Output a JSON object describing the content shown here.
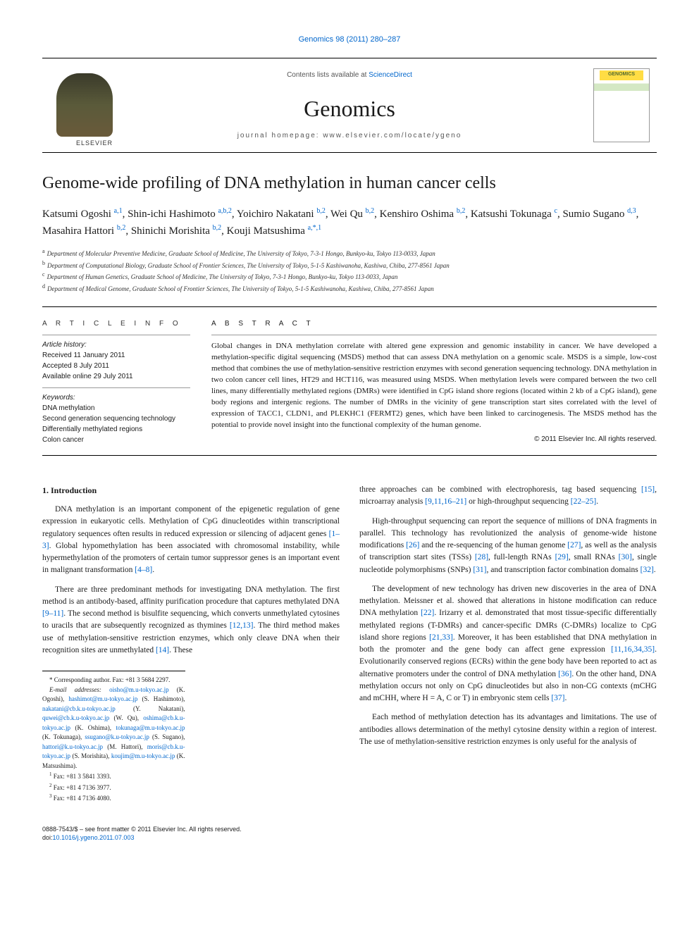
{
  "running_head": "Genomics 98 (2011) 280–287",
  "masthead": {
    "contents_prefix": "Contents lists available at ",
    "contents_link": "ScienceDirect",
    "journal": "Genomics",
    "homepage_prefix": "journal homepage: ",
    "homepage": "www.elsevier.com/locate/ygeno",
    "publisher": "ELSEVIER"
  },
  "title": "Genome-wide profiling of DNA methylation in human cancer cells",
  "authors_html": "Katsumi Ogoshi <sup>a,1</sup>, Shin-ichi Hashimoto <sup>a,b,2</sup>, Yoichiro Nakatani <sup>b,2</sup>, Wei Qu <sup>b,2</sup>, Kenshiro Oshima <sup>b,2</sup>, Katsushi Tokunaga <sup>c</sup>, Sumio Sugano <sup>d,3</sup>, Masahira Hattori <sup>b,2</sup>, Shinichi Morishita <sup>b,2</sup>, Kouji Matsushima <sup>a,<span class=\"star\">*</span>,1</sup>",
  "affiliations": [
    {
      "key": "a",
      "text": "Department of Molecular Preventive Medicine, Graduate School of Medicine, The University of Tokyo, 7-3-1 Hongo, Bunkyo-ku, Tokyo 113-0033, Japan"
    },
    {
      "key": "b",
      "text": "Department of Computational Biology, Graduate School of Frontier Sciences, The University of Tokyo, 5-1-5 Kashiwanoha, Kashiwa, Chiba, 277-8561 Japan"
    },
    {
      "key": "c",
      "text": "Department of Human Genetics, Graduate School of Medicine, The University of Tokyo, 7-3-1 Hongo, Bunkyo-ku, Tokyo 113-0033, Japan"
    },
    {
      "key": "d",
      "text": "Department of Medical Genome, Graduate School of Frontier Sciences, The University of Tokyo, 5-1-5 Kashiwanoha, Kashiwa, Chiba, 277-8561 Japan"
    }
  ],
  "article_info": {
    "heading": "A R T I C L E   I N F O",
    "history_label": "Article history:",
    "history": [
      "Received 11 January 2011",
      "Accepted 8 July 2011",
      "Available online 29 July 2011"
    ],
    "keywords_label": "Keywords:",
    "keywords": [
      "DNA methylation",
      "Second generation sequencing technology",
      "Differentially methylated regions",
      "Colon cancer"
    ]
  },
  "abstract": {
    "heading": "A B S T R A C T",
    "text": "Global changes in DNA methylation correlate with altered gene expression and genomic instability in cancer. We have developed a methylation-specific digital sequencing (MSDS) method that can assess DNA methylation on a genomic scale. MSDS is a simple, low-cost method that combines the use of methylation-sensitive restriction enzymes with second generation sequencing technology. DNA methylation in two colon cancer cell lines, HT29 and HCT116, was measured using MSDS. When methylation levels were compared between the two cell lines, many differentially methylated regions (DMRs) were identified in CpG island shore regions (located within 2 kb of a CpG island), gene body regions and intergenic regions. The number of DMRs in the vicinity of gene transcription start sites correlated with the level of expression of TACC1, CLDN1, and PLEKHC1 (FERMT2) genes, which have been linked to carcinogenesis. The MSDS method has the potential to provide novel insight into the functional complexity of the human genome.",
    "copyright": "© 2011 Elsevier Inc. All rights reserved."
  },
  "body": {
    "section1_heading": "1. Introduction",
    "p1": "DNA methylation is an important component of the epigenetic regulation of gene expression in eukaryotic cells. Methylation of CpG dinucleotides within transcriptional regulatory sequences often results in reduced expression or silencing of adjacent genes [1–3]. Global hypomethylation has been associated with chromosomal instability, while hypermethylation of the promoters of certain tumor suppressor genes is an important event in malignant transformation [4–8].",
    "p2": "There are three predominant methods for investigating DNA methylation. The first method is an antibody-based, affinity purification procedure that captures methylated DNA [9–11]. The second method is bisulfite sequencing, which converts unmethylated cytosines to uracils that are subsequently recognized as thymines [12,13]. The third method makes use of methylation-sensitive restriction enzymes, which only cleave DNA when their recognition sites are unmethylated [14]. These",
    "p3": "three approaches can be combined with electrophoresis, tag based sequencing [15], microarray analysis [9,11,16–21] or high-throughput sequencing [22–25].",
    "p4": "High-throughput sequencing can report the sequence of millions of DNA fragments in parallel. This technology has revolutionized the analysis of genome-wide histone modifications [26] and the re-sequencing of the human genome [27], as well as the analysis of transcription start sites (TSSs) [28], full-length RNAs [29], small RNAs [30], single nucleotide polymorphisms (SNPs) [31], and transcription factor combination domains [32].",
    "p5": "The development of new technology has driven new discoveries in the area of DNA methylation. Meissner et al. showed that alterations in histone modification can reduce DNA methylation [22]. Irizarry et al. demonstrated that most tissue-specific differentially methylated regions (T-DMRs) and cancer-specific DMRs (C-DMRs) localize to CpG island shore regions [21,33]. Moreover, it has been established that DNA methylation in both the promoter and the gene body can affect gene expression [11,16,34,35]. Evolutionarily conserved regions (ECRs) within the gene body have been reported to act as alternative promoters under the control of DNA methylation [36]. On the other hand, DNA methylation occurs not only on CpG dinucleotides but also in non-CG contexts (mCHG and mCHH, where H = A, C or T) in embryonic stem cells [37].",
    "p6": "Each method of methylation detection has its advantages and limitations. The use of antibodies allows determination of the methyl cytosine density within a region of interest. The use of methylation-sensitive restriction enzymes is only useful for the analysis of"
  },
  "footnotes": {
    "corr": "* Corresponding author. Fax: +81 3 5684 2297.",
    "emails_label": "E-mail addresses:",
    "emails": [
      {
        "addr": "oisho@m.u-tokyo.ac.jp",
        "who": "(K. Ogoshi)"
      },
      {
        "addr": "hashimot@m.u-tokyo.ac.jp",
        "who": "(S. Hashimoto)"
      },
      {
        "addr": "nakatani@cb.k.u-tokyo.ac.jp",
        "who": "(Y. Nakatani)"
      },
      {
        "addr": "quwei@cb.k.u-tokyo.ac.jp",
        "who": "(W. Qu)"
      },
      {
        "addr": "oshima@cb.k.u-tokyo.ac.jp",
        "who": "(K. Oshima)"
      },
      {
        "addr": "tokunaga@m.u-tokyo.ac.jp",
        "who": "(K. Tokunaga)"
      },
      {
        "addr": "ssugano@k.u-tokyo.ac.jp",
        "who": "(S. Sugano)"
      },
      {
        "addr": "hattori@k.u-tokyo.ac.jp",
        "who": "(M. Hattori)"
      },
      {
        "addr": "moris@cb.k.u-tokyo.ac.jp",
        "who": "(S. Morishita)"
      },
      {
        "addr": "koujim@m.u-tokyo.ac.jp",
        "who": "(K. Matsushima)"
      }
    ],
    "fax1": "Fax: +81 3 5841 3393.",
    "fax2": "Fax: +81 4 7136 3977.",
    "fax3": "Fax: +81 4 7136 4080."
  },
  "footer": {
    "line1": "0888-7543/$ – see front matter © 2011 Elsevier Inc. All rights reserved.",
    "doi_label": "doi:",
    "doi": "10.1016/j.ygeno.2011.07.003"
  },
  "colors": {
    "link": "#0066cc",
    "text": "#1a1a1a",
    "rule": "#000000"
  }
}
